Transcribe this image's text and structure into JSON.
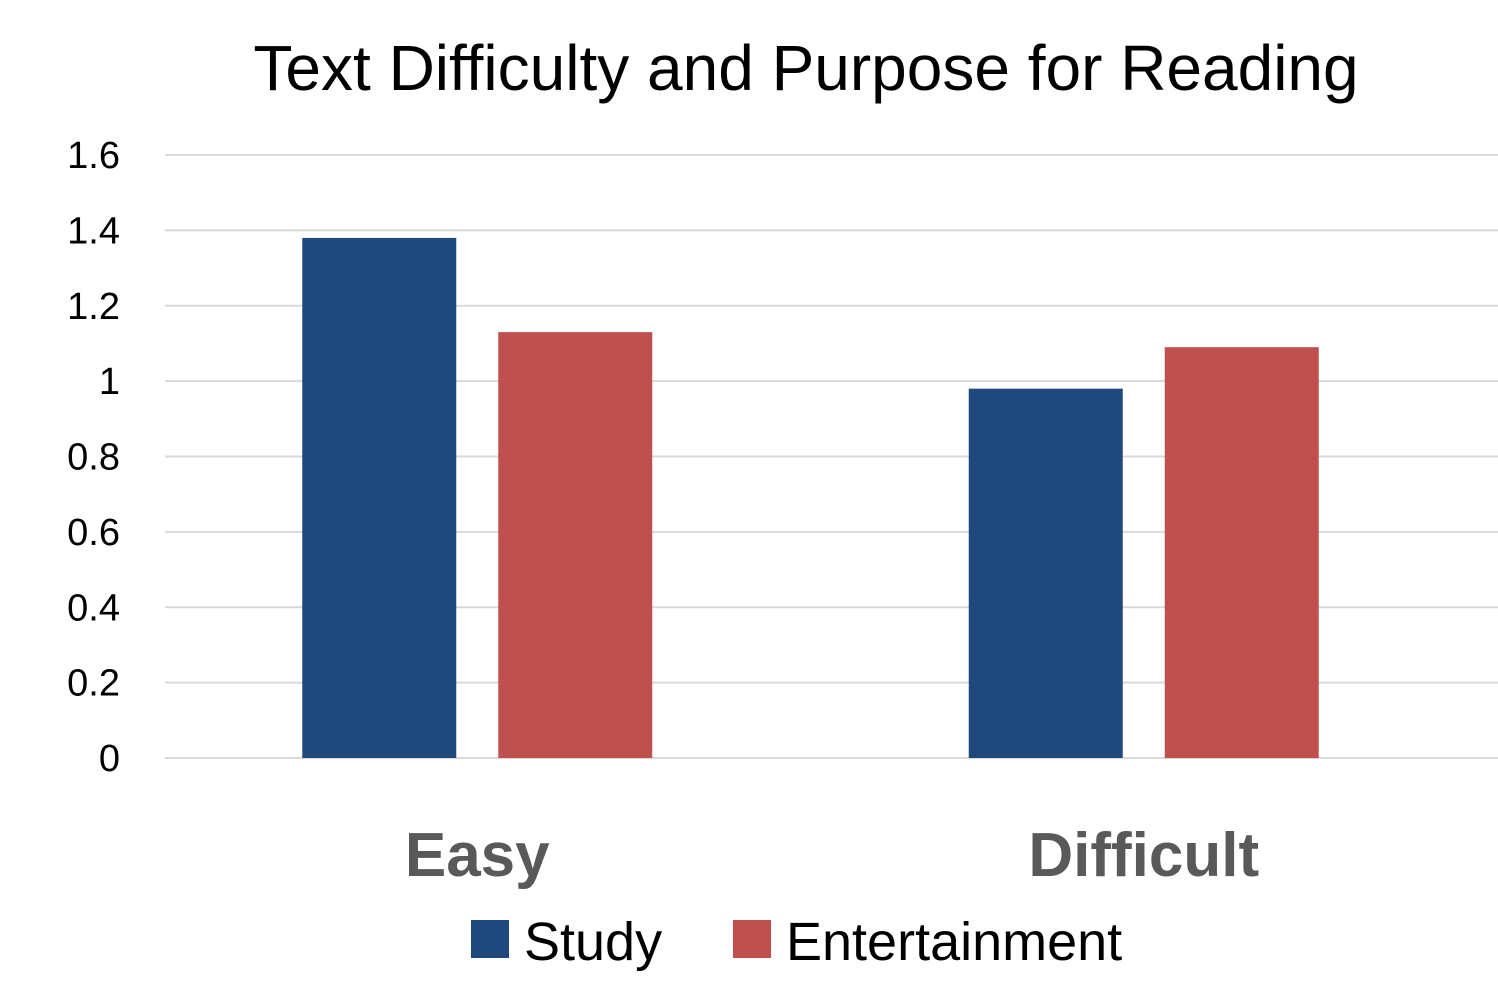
{
  "chart_data": {
    "type": "bar",
    "title": "Text Difficulty and Purpose for Reading",
    "xlabel": "",
    "ylabel": "",
    "categories": [
      "Easy",
      "Difficult"
    ],
    "series": [
      {
        "name": "Study",
        "values": [
          1.38,
          0.98
        ],
        "color": "#1f497d"
      },
      {
        "name": "Entertainment",
        "values": [
          1.13,
          1.09
        ],
        "color": "#c0504d"
      }
    ],
    "ylim": [
      0,
      1.6
    ],
    "yticks": [
      "0",
      "0.2",
      "0.4",
      "0.6",
      "0.8",
      "1",
      "1.2",
      "1.4",
      "1.6"
    ],
    "grid": true,
    "legend_position": "bottom"
  }
}
